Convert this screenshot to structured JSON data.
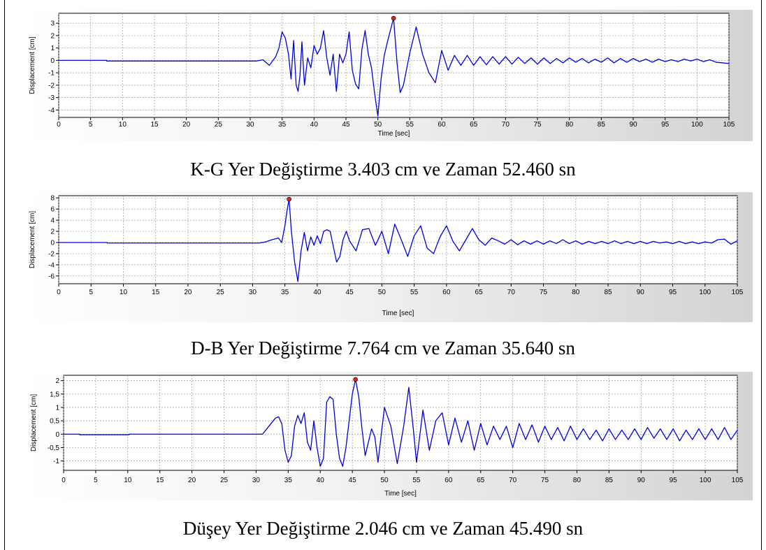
{
  "captions": [
    "K-G Yer Değiştirme 3.403 cm ve Zaman 52.460 sn",
    "D-B Yer Değiştirme 7.764 cm ve Zaman 35.640 sn",
    "Düşey Yer Değiştirme 2.046 cm ve Zaman 45.490 sn"
  ],
  "colors": {
    "line": "#0000dd",
    "peak": "#dd2222",
    "grid": "#9a9a9a"
  },
  "chart_data": [
    {
      "type": "line",
      "title": "K-G Yer Değiştirme 3.403 cm ve Zaman 52.460 sn",
      "xlabel": "Time [sec]",
      "ylabel": "Displacement [cm]",
      "xlim": [
        0,
        105
      ],
      "ylim": [
        -4.6,
        3.8
      ],
      "xticks": [
        0,
        5,
        10,
        15,
        20,
        25,
        30,
        35,
        40,
        45,
        50,
        55,
        60,
        65,
        70,
        75,
        80,
        85,
        90,
        95,
        100,
        105
      ],
      "yticks": [
        -4,
        -3,
        -2,
        -1,
        0,
        1,
        2,
        3
      ],
      "ytick_labels": [
        "-4",
        "-3",
        "-2",
        "-1",
        "0",
        "1",
        "2",
        "3"
      ],
      "grid": true,
      "peak": {
        "x": 52.46,
        "y": 3.403
      },
      "x": [
        0,
        7.5,
        7.5,
        31,
        32,
        33,
        34,
        34.5,
        35,
        35.5,
        36,
        36.4,
        36.8,
        37.2,
        37.5,
        37.8,
        38.1,
        38.5,
        39,
        39.5,
        40,
        40.5,
        41,
        41.5,
        42,
        42.5,
        43,
        43.5,
        44,
        44.5,
        45,
        45.5,
        46,
        46.5,
        47,
        47.5,
        48,
        48.5,
        49,
        49.5,
        50,
        50.5,
        51,
        51.5,
        52,
        52.46,
        53,
        53.5,
        54,
        55,
        56,
        57,
        58,
        59,
        60,
        61,
        62,
        63,
        64,
        65,
        66,
        67,
        68,
        69,
        70,
        71,
        72,
        73,
        74,
        75,
        76,
        77,
        78,
        79,
        80,
        81,
        82,
        83,
        84,
        85,
        86,
        87,
        88,
        89,
        90,
        91,
        92,
        93,
        94,
        95,
        96,
        97,
        98,
        99,
        100,
        101,
        102,
        103,
        104,
        105
      ],
      "y": [
        0,
        0,
        -0.05,
        -0.05,
        0.05,
        -0.4,
        0.3,
        1.0,
        2.3,
        1.8,
        0.5,
        -1.5,
        1.6,
        -2.0,
        -2.5,
        -1.2,
        1.5,
        -2.0,
        0.2,
        -0.6,
        1.2,
        0.5,
        1.0,
        2.4,
        0.2,
        -1.2,
        0.5,
        -2.5,
        0.5,
        -0.2,
        0.5,
        2.3,
        -0.8,
        -1.9,
        -2.3,
        0.9,
        2.4,
        0.5,
        -0.6,
        -2.7,
        -4.5,
        -1.5,
        0.4,
        1.5,
        2.5,
        3.403,
        -0.2,
        -2.6,
        -2.0,
        0.6,
        2.7,
        0.5,
        -1.0,
        -1.8,
        0.8,
        -0.8,
        0.4,
        -0.4,
        0.4,
        -0.4,
        0.3,
        -0.35,
        0.3,
        -0.3,
        0.3,
        -0.3,
        0.25,
        -0.25,
        0.2,
        -0.3,
        0.2,
        -0.25,
        0.15,
        -0.2,
        0.2,
        -0.15,
        0.15,
        -0.2,
        0.1,
        -0.15,
        0.2,
        -0.2,
        0.15,
        -0.15,
        0.15,
        -0.1,
        0.1,
        -0.15,
        0.1,
        -0.1,
        0.05,
        -0.1,
        0.1,
        -0.05,
        0.1,
        -0.1,
        0.05,
        -0.15,
        -0.2,
        -0.25
      ]
    },
    {
      "type": "line",
      "title": "D-B Yer Değiştirme 7.764 cm ve Zaman 35.640 sn",
      "xlabel": "Time [sec]",
      "ylabel": "Displacement [cm]",
      "xlim": [
        0,
        105
      ],
      "ylim": [
        -7.4,
        8.4
      ],
      "xticks": [
        0,
        5,
        10,
        15,
        20,
        25,
        30,
        35,
        40,
        45,
        50,
        55,
        60,
        65,
        70,
        75,
        80,
        85,
        90,
        95,
        100,
        105
      ],
      "yticks": [
        -6,
        -4,
        -2,
        0,
        2,
        4,
        6,
        8
      ],
      "ytick_labels": [
        "-6",
        "-4",
        "-2",
        "0",
        "2",
        "4",
        "6",
        "8"
      ],
      "grid": true,
      "peak": {
        "x": 35.64,
        "y": 7.764
      },
      "x": [
        0,
        7.5,
        7.5,
        31,
        32,
        33,
        34,
        34.5,
        35,
        35.3,
        35.64,
        36,
        36.5,
        37,
        37.5,
        38,
        38.5,
        39,
        39.5,
        40,
        40.5,
        41,
        41.5,
        42,
        42.5,
        43,
        43.5,
        44,
        44.5,
        45,
        46,
        47,
        48,
        49,
        50,
        51,
        52,
        53,
        54,
        55,
        56,
        57,
        58,
        59,
        60,
        61,
        62,
        63,
        64,
        65,
        66,
        67,
        68,
        69,
        70,
        71,
        72,
        73,
        74,
        75,
        76,
        77,
        78,
        79,
        80,
        81,
        82,
        83,
        84,
        85,
        86,
        87,
        88,
        89,
        90,
        91,
        92,
        93,
        94,
        95,
        96,
        97,
        98,
        99,
        100,
        101,
        102,
        103,
        104,
        105
      ],
      "y": [
        0,
        0,
        -0.1,
        -0.1,
        0.1,
        0.5,
        0.8,
        0,
        3.0,
        5.5,
        7.764,
        2.0,
        -3.5,
        -7.0,
        -1.5,
        1.8,
        -1.5,
        1.0,
        -0.5,
        1.2,
        -0.2,
        2.0,
        2.3,
        2.0,
        -0.8,
        -3.5,
        -2.5,
        0.5,
        2.0,
        0.3,
        -1.5,
        2.3,
        2.5,
        -0.5,
        2.0,
        -2.0,
        3.3,
        0.5,
        -2.5,
        1.2,
        3.0,
        -1.0,
        -2.0,
        1.0,
        3.0,
        0.2,
        -1.5,
        0.5,
        2.5,
        0.5,
        -0.5,
        0.8,
        0.3,
        -0.3,
        0.5,
        -0.4,
        0.3,
        -0.3,
        0.3,
        -0.3,
        0.3,
        -0.2,
        0.5,
        -0.2,
        0.3,
        -0.3,
        0.2,
        -0.2,
        0.2,
        -0.2,
        0.3,
        -0.2,
        0.2,
        -0.2,
        0.2,
        -0.2,
        0.2,
        -0.1,
        0.1,
        -0.2,
        0.2,
        -0.2,
        0.1,
        -0.2,
        0.1,
        -0.1,
        0.5,
        0.6,
        -0.3,
        0.3
      ]
    },
    {
      "type": "line",
      "title": "Düşey Yer Değiştirme 2.046 cm ve Zaman 45.490 sn",
      "xlabel": "Time [sec]",
      "ylabel": "Displacement [cm]",
      "xlim": [
        0,
        105
      ],
      "ylim": [
        -1.35,
        2.2
      ],
      "xticks": [
        0,
        5,
        10,
        15,
        20,
        25,
        30,
        35,
        40,
        45,
        50,
        55,
        60,
        65,
        70,
        75,
        80,
        85,
        90,
        95,
        100,
        105
      ],
      "yticks": [
        -1,
        -0.5,
        0,
        0.5,
        1,
        1.5,
        2
      ],
      "ytick_labels": [
        "-1",
        "-0,5",
        "0",
        "0,5",
        "1",
        "1,5",
        "2"
      ],
      "grid": true,
      "peak": {
        "x": 45.49,
        "y": 2.046
      },
      "x": [
        0,
        2.5,
        2.5,
        10.2,
        10.2,
        31,
        32,
        33,
        33.5,
        34,
        34.5,
        35,
        35.5,
        36,
        36.5,
        37,
        37.5,
        38,
        38.5,
        39,
        39.5,
        40,
        40.5,
        41,
        41.5,
        42,
        42.5,
        43,
        43.5,
        44,
        44.5,
        45,
        45.49,
        46,
        46.5,
        47,
        47.5,
        48,
        48.5,
        49,
        50,
        51,
        52,
        53,
        53.8,
        54.5,
        55,
        56,
        57,
        58,
        59,
        60,
        61,
        62,
        63,
        64,
        65,
        66,
        67,
        68,
        69,
        70,
        71,
        72,
        73,
        74,
        75,
        76,
        77,
        78,
        79,
        80,
        81,
        82,
        83,
        84,
        85,
        86,
        87,
        88,
        89,
        90,
        91,
        92,
        93,
        94,
        95,
        96,
        97,
        98,
        99,
        100,
        101,
        102,
        103,
        104,
        105
      ],
      "y": [
        0,
        0,
        -0.02,
        -0.02,
        0,
        0,
        0.3,
        0.6,
        0.65,
        0.4,
        -0.6,
        -1.05,
        -0.8,
        0.3,
        0.7,
        0.4,
        0.8,
        -0.3,
        -0.6,
        0.5,
        -0.5,
        -1.2,
        -0.9,
        1.2,
        1.4,
        1.3,
        0,
        -0.9,
        -1.2,
        -0.5,
        0.5,
        1.5,
        2.046,
        1.4,
        0.2,
        -0.8,
        -0.3,
        0.2,
        -0.1,
        -1.05,
        1.0,
        0.3,
        -1.1,
        0.3,
        1.75,
        0.2,
        -1.05,
        0.9,
        -0.6,
        0.5,
        0.8,
        -0.4,
        0.6,
        -0.3,
        0.5,
        -0.6,
        0.4,
        -0.4,
        0.3,
        -0.2,
        0.3,
        -0.5,
        0.4,
        -0.2,
        0.35,
        -0.3,
        0.3,
        -0.2,
        0.25,
        -0.25,
        0.3,
        -0.2,
        0.2,
        -0.2,
        0.15,
        -0.25,
        0.2,
        -0.2,
        0.15,
        -0.2,
        0.2,
        -0.2,
        0.25,
        -0.15,
        0.2,
        -0.2,
        0.2,
        -0.25,
        0.15,
        -0.2,
        0.2,
        -0.2,
        0.2,
        -0.2,
        0.25,
        -0.2,
        0.15
      ]
    }
  ]
}
